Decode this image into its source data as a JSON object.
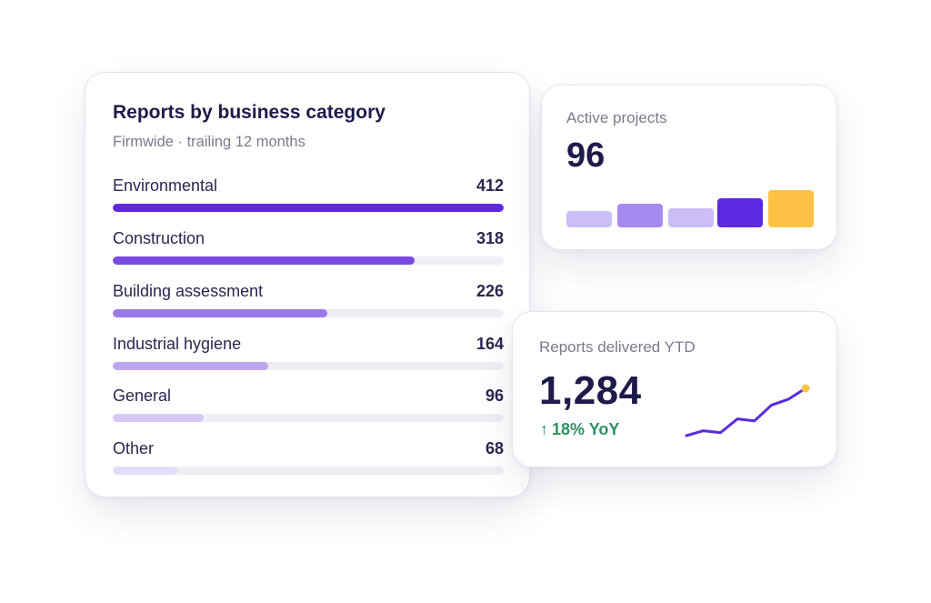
{
  "category_card": {
    "title": "Reports by business category",
    "subtitle": "Firmwide · trailing 12 months",
    "max_value": 412,
    "rows": [
      {
        "label": "Environmental",
        "value": "412",
        "amount": 412,
        "color": "#6128e0"
      },
      {
        "label": "Construction",
        "value": "318",
        "amount": 318,
        "color": "#7a4ae6"
      },
      {
        "label": "Building assessment",
        "value": "226",
        "amount": 226,
        "color": "#9c79ea"
      },
      {
        "label": "Industrial hygiene",
        "value": "164",
        "amount": 164,
        "color": "#bca6f0"
      },
      {
        "label": "General",
        "value": "96",
        "amount": 96,
        "color": "#d5c8f6"
      },
      {
        "label": "Other",
        "value": "68",
        "amount": 68,
        "color": "#e4dcfa"
      }
    ]
  },
  "active_projects": {
    "label": "Active projects",
    "value": "96",
    "blocks": [
      {
        "level": 0.4,
        "color": "#cbbdf7"
      },
      {
        "level": 0.58,
        "color": "#a58aef"
      },
      {
        "level": 0.47,
        "color": "#cbbdf7"
      },
      {
        "level": 0.73,
        "color": "#5b2ae0"
      },
      {
        "level": 0.93,
        "color": "#ffc247"
      }
    ]
  },
  "reports_delivered": {
    "label": "Reports delivered YTD",
    "value": "1,284",
    "yoy_arrow": "↑",
    "yoy_text": "18% YoY",
    "yoy_color": "#2f8f5f",
    "sparkline": {
      "values": [
        10,
        15,
        13,
        27,
        25,
        41,
        47,
        58
      ],
      "line_color": "#5b2ae0",
      "dot_color": "#ffc247"
    }
  }
}
